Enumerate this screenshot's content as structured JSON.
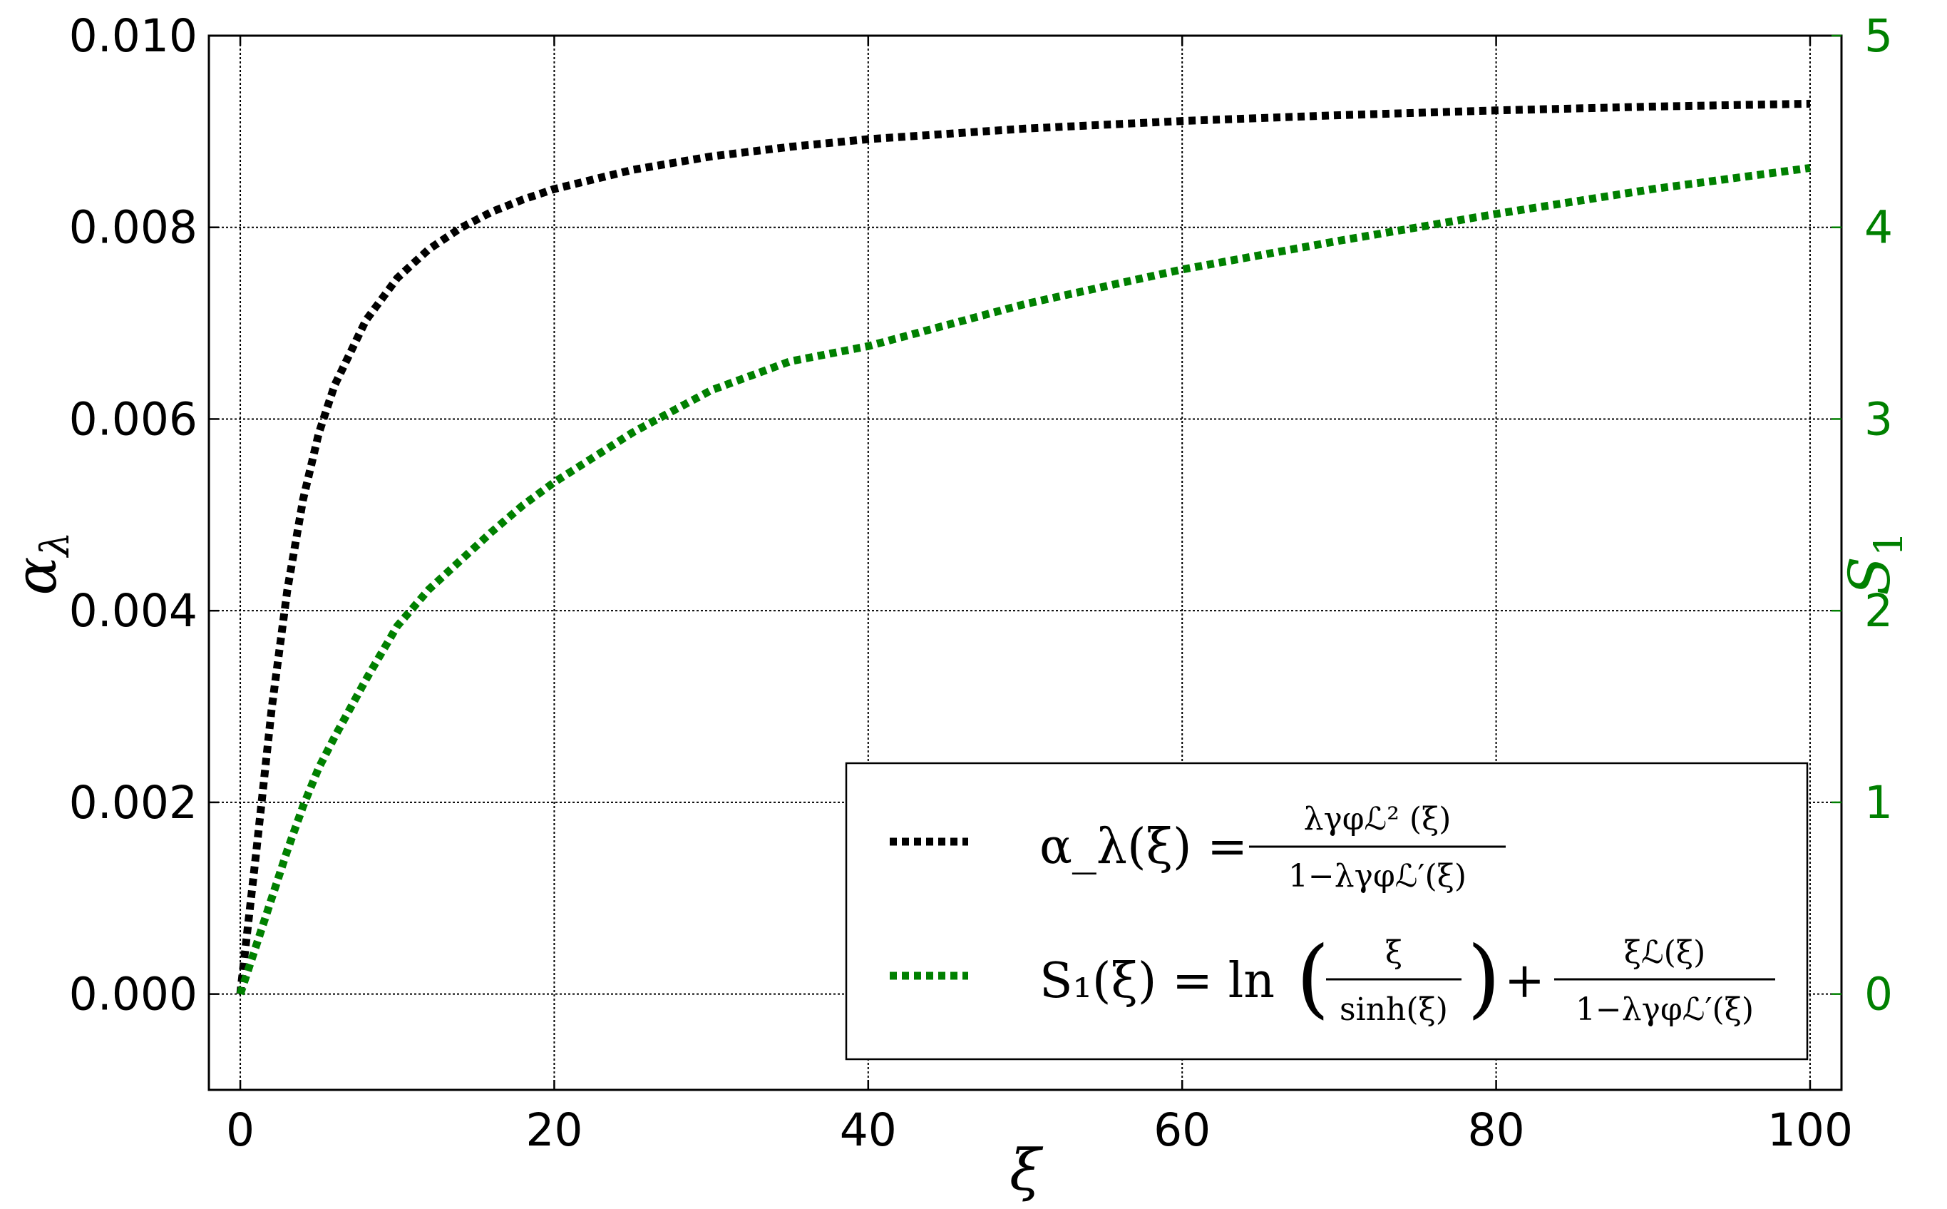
{
  "chart_data": {
    "type": "line",
    "xlabel": "ξ",
    "ylabel_left": "α",
    "ylabel_left_sub": "λ",
    "ylabel_right": "S",
    "ylabel_right_sub": "1",
    "xlim": [
      -2,
      102
    ],
    "ylim_left": [
      -0.001,
      0.01
    ],
    "ylim_right": [
      -0.5,
      5
    ],
    "x_ticks": [
      "0",
      "20",
      "40",
      "60",
      "80",
      "100"
    ],
    "y_left_ticks": [
      "0.000",
      "0.002",
      "0.004",
      "0.006",
      "0.008",
      "0.010"
    ],
    "y_right_ticks": [
      "0",
      "1",
      "2",
      "3",
      "4",
      "5"
    ],
    "grid": true,
    "legend_placement": "lower-right",
    "colors": {
      "alpha": "#000000",
      "s1": "#008000",
      "right_axis": "#008000"
    },
    "series": [
      {
        "key": "alpha",
        "legend": {
          "lhs": "α_λ(ξ) =",
          "numerator": "λγφℒ² (ξ)",
          "denominator": "1−λγφℒ′(ξ)"
        },
        "axis": "left",
        "x": [
          0,
          1,
          2,
          3,
          4,
          5,
          6,
          8,
          10,
          12,
          14,
          16,
          18,
          20,
          25,
          30,
          35,
          40,
          50,
          60,
          70,
          80,
          90,
          100
        ],
        "values": [
          0.0,
          0.00146,
          0.00298,
          0.00422,
          0.00516,
          0.00585,
          0.00635,
          0.00703,
          0.00747,
          0.00777,
          0.00799,
          0.00816,
          0.00829,
          0.0084,
          0.0086,
          0.00874,
          0.00884,
          0.00892,
          0.00903,
          0.00911,
          0.00917,
          0.00922,
          0.00926,
          0.00929
        ]
      },
      {
        "key": "s1",
        "legend": {
          "lhs": "S₁(ξ) = ln",
          "frac1_num": "ξ",
          "frac1_den": "sinh(ξ)",
          "plus": "+",
          "frac2_num": "ξℒ(ξ)",
          "frac2_den": "1−λγφℒ′(ξ)"
        },
        "axis": "right",
        "x": [
          0,
          1,
          2,
          3,
          4,
          5,
          6,
          8,
          10,
          12,
          14,
          16,
          18,
          20,
          25,
          30,
          35,
          40,
          50,
          60,
          70,
          80,
          90,
          100
        ],
        "values": [
          0.0,
          0.25,
          0.5,
          0.75,
          0.98,
          1.18,
          1.34,
          1.64,
          1.92,
          2.11,
          2.26,
          2.41,
          2.55,
          2.67,
          2.93,
          3.15,
          3.3,
          3.38,
          3.6,
          3.78,
          3.93,
          4.07,
          4.2,
          4.31
        ]
      }
    ]
  }
}
